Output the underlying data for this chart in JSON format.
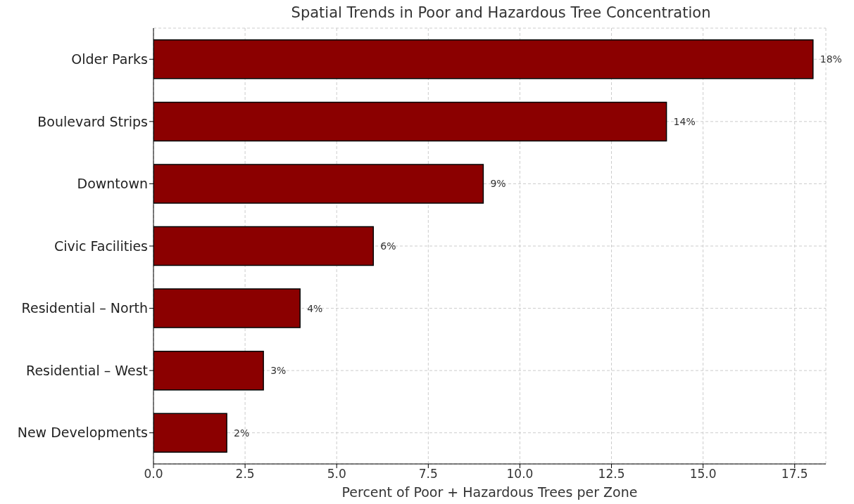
{
  "chart_data": {
    "type": "bar",
    "orientation": "horizontal",
    "title": "Spatial Trends in Poor and Hazardous Tree Concentration",
    "xlabel": "Percent of Poor + Hazardous Trees per Zone",
    "categories": [
      "Older Parks",
      "Boulevard Strips",
      "Downtown",
      "Civic Facilities",
      "Residential – North",
      "Residential – West",
      "New Developments"
    ],
    "values": [
      18,
      14,
      9,
      6,
      4,
      3,
      2
    ],
    "value_labels": [
      "18%",
      "14%",
      "9%",
      "6%",
      "4%",
      "3%",
      "2%"
    ],
    "color": "#8b0000",
    "xlim": [
      0,
      18.35
    ],
    "xticks": [
      {
        "value": 0,
        "label": "0.0"
      },
      {
        "value": 2.5,
        "label": "2.5"
      },
      {
        "value": 5,
        "label": "5.0"
      },
      {
        "value": 7.5,
        "label": "7.5"
      },
      {
        "value": 10,
        "label": "10.0"
      },
      {
        "value": 12.5,
        "label": "12.5"
      },
      {
        "value": 15,
        "label": "15.0"
      },
      {
        "value": 17.5,
        "label": "17.5"
      }
    ],
    "grid": true
  }
}
